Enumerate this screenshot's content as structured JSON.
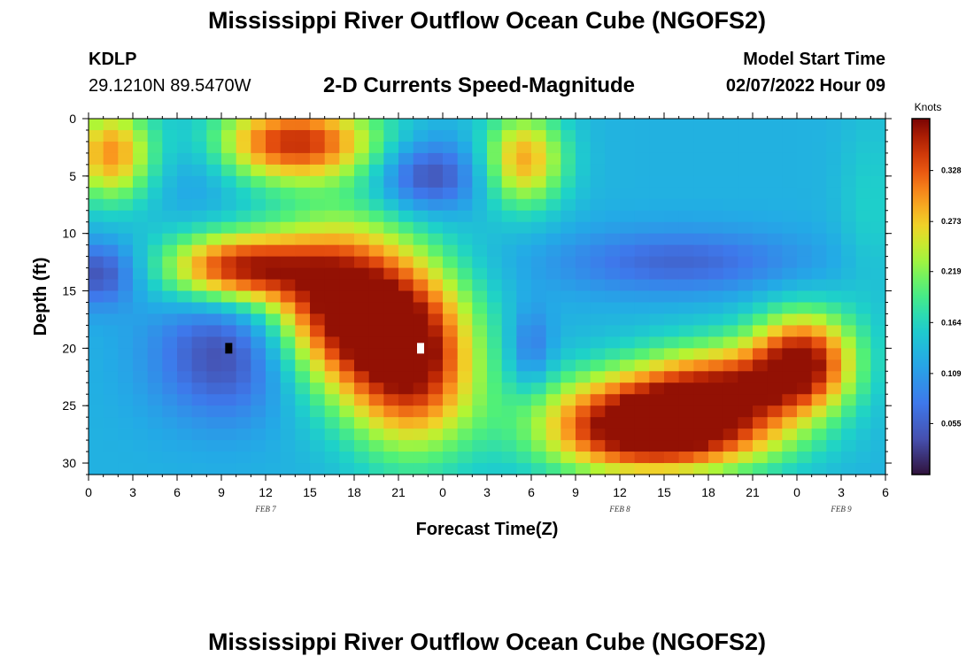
{
  "header": {
    "title": "Mississippi River Outflow Ocean Cube (NGOFS2)",
    "station_id": "KDLP",
    "station_coords": "29.1210N  89.5470W",
    "subtitle": "2-D Currents Speed-Magnitude",
    "model_start_label": "Model Start Time",
    "model_start_value": "02/07/2022 Hour 09"
  },
  "footer": {
    "title": "Mississippi River Outflow Ocean Cube (NGOFS2)"
  },
  "chart_data": {
    "type": "heatmap",
    "title": "2-D Currents Speed-Magnitude",
    "xlabel": "Forecast Time(Z)",
    "ylabel": "Depth (ft)",
    "x_ticks": [
      {
        "hour": 0,
        "label": "0"
      },
      {
        "hour": 3,
        "label": "3"
      },
      {
        "hour": 6,
        "label": "6"
      },
      {
        "hour": 9,
        "label": "9"
      },
      {
        "hour": 12,
        "label": "12"
      },
      {
        "hour": 15,
        "label": "15"
      },
      {
        "hour": 18,
        "label": "18"
      },
      {
        "hour": 21,
        "label": "21"
      },
      {
        "hour": 24,
        "label": "0"
      },
      {
        "hour": 27,
        "label": "3"
      },
      {
        "hour": 30,
        "label": "6"
      },
      {
        "hour": 33,
        "label": "9"
      },
      {
        "hour": 36,
        "label": "12"
      },
      {
        "hour": 39,
        "label": "15"
      },
      {
        "hour": 42,
        "label": "18"
      },
      {
        "hour": 45,
        "label": "21"
      },
      {
        "hour": 48,
        "label": "0"
      },
      {
        "hour": 51,
        "label": "3"
      },
      {
        "hour": 54,
        "label": "6"
      }
    ],
    "date_labels": [
      {
        "hour": 12,
        "label": "FEB 7"
      },
      {
        "hour": 36,
        "label": "FEB 8"
      },
      {
        "hour": 51,
        "label": "FEB 9"
      }
    ],
    "xlim_hours": [
      0,
      54
    ],
    "y_ticks": [
      0,
      5,
      10,
      15,
      20,
      25,
      30
    ],
    "ylim": [
      0,
      31
    ],
    "colorbar": {
      "label": "Knots",
      "min": 0.0,
      "max": 0.384,
      "ticks": [
        0.055,
        0.109,
        0.164,
        0.219,
        0.273,
        0.328
      ]
    },
    "grid_cols": 54,
    "grid_rows": 31,
    "base_value": 0.13,
    "features": [
      {
        "x": 1.5,
        "y": 3,
        "sx": 2.0,
        "sy": 3.0,
        "a": 0.17
      },
      {
        "x": 7.5,
        "y": 4,
        "sx": 2.0,
        "sy": 3.0,
        "a": -0.03
      },
      {
        "x": 14,
        "y": 2,
        "sx": 4.0,
        "sy": 2.5,
        "a": 0.22
      },
      {
        "x": 23,
        "y": 5,
        "sx": 2.5,
        "sy": 2.2,
        "a": -0.1
      },
      {
        "x": 29.5,
        "y": 3.5,
        "sx": 2.0,
        "sy": 3.0,
        "a": 0.16
      },
      {
        "x": 0.8,
        "y": 13.5,
        "sx": 1.8,
        "sy": 2.0,
        "a": -0.09
      },
      {
        "x": 10,
        "y": 13,
        "sx": 3.5,
        "sy": 2.2,
        "a": 0.22
      },
      {
        "x": 17,
        "y": 16,
        "sx": 3.5,
        "sy": 5.0,
        "a": 0.24
      },
      {
        "x": 22,
        "y": 21,
        "sx": 3.2,
        "sy": 5.5,
        "a": 0.24
      },
      {
        "x": 9.5,
        "y": 20.5,
        "sx": 3.5,
        "sy": 4.0,
        "a": -0.1
      },
      {
        "x": 40,
        "y": 12.5,
        "sx": 6.0,
        "sy": 2.0,
        "a": -0.07
      },
      {
        "x": 30,
        "y": 20,
        "sx": 1.0,
        "sy": 2.5,
        "a": -0.06
      },
      {
        "x": 36.5,
        "y": 26.5,
        "sx": 4.5,
        "sy": 3.0,
        "a": 0.23
      },
      {
        "x": 43,
        "y": 24,
        "sx": 4.0,
        "sy": 3.0,
        "a": 0.21
      },
      {
        "x": 48.5,
        "y": 21,
        "sx": 2.5,
        "sy": 3.0,
        "a": 0.22
      },
      {
        "x": 41,
        "y": 28.5,
        "sx": 5.0,
        "sy": 2.0,
        "a": 0.08
      },
      {
        "x": 53,
        "y": 8,
        "sx": 1.5,
        "sy": 6.0,
        "a": 0.03
      }
    ],
    "markers": [
      {
        "hour": 9.5,
        "depth": 20,
        "color": "#000000",
        "kind": "min"
      },
      {
        "hour": 22.5,
        "depth": 20,
        "color": "#ffffff",
        "kind": "max"
      }
    ]
  }
}
